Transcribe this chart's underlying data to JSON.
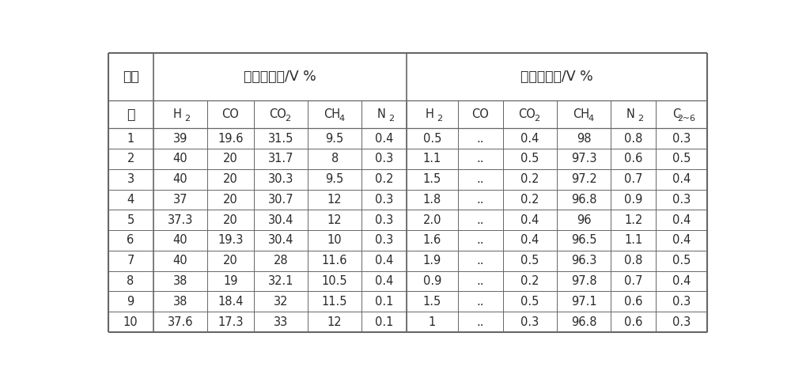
{
  "header1_text": "原料气组成/V %",
  "header2_text": "产品气组成/V %",
  "row_label_line1": "实施",
  "row_label_line2": "例",
  "col_headers": [
    "H 2",
    "C O",
    "C O 2",
    "C H 4",
    "N 2",
    "H 2",
    "C O",
    "C O 2",
    "C H 4",
    "N 2",
    "C 2~6"
  ],
  "col_headers_sub": [
    {
      "text": "H",
      "sub": "2"
    },
    {
      "text": "CO",
      "sub": ""
    },
    {
      "text": "CO",
      "sub": "2"
    },
    {
      "text": "CH",
      "sub": "4"
    },
    {
      "text": "N",
      "sub": "2"
    },
    {
      "text": "H",
      "sub": "2"
    },
    {
      "text": "CO",
      "sub": ""
    },
    {
      "text": "CO",
      "sub": "2"
    },
    {
      "text": "CH",
      "sub": "4"
    },
    {
      "text": "N",
      "sub": "2"
    },
    {
      "text": "C",
      "sub": "2~6"
    }
  ],
  "rows": [
    [
      "1",
      "39",
      "19.6",
      "31.5",
      "9.5",
      "0.4",
      "0.5",
      "..",
      "0.4",
      "98",
      "0.8",
      "0.3"
    ],
    [
      "2",
      "40",
      "20",
      "31.7",
      "8",
      "0.3",
      "1.1",
      "..",
      "0.5",
      "97.3",
      "0.6",
      "0.5"
    ],
    [
      "3",
      "40",
      "20",
      "30.3",
      "9.5",
      "0.2",
      "1.5",
      "..",
      "0.2",
      "97.2",
      "0.7",
      "0.4"
    ],
    [
      "4",
      "37",
      "20",
      "30.7",
      "12",
      "0.3",
      "1.8",
      "..",
      "0.2",
      "96.8",
      "0.9",
      "0.3"
    ],
    [
      "5",
      "37.3",
      "20",
      "30.4",
      "12",
      "0.3",
      "2.0",
      "..",
      "0.4",
      "96",
      "1.2",
      "0.4"
    ],
    [
      "6",
      "40",
      "19.3",
      "30.4",
      "10",
      "0.3",
      "1.6",
      "..",
      "0.4",
      "96.5",
      "1.1",
      "0.4"
    ],
    [
      "7",
      "40",
      "20",
      "28",
      "11.6",
      "0.4",
      "1.9",
      "..",
      "0.5",
      "96.3",
      "0.8",
      "0.5"
    ],
    [
      "8",
      "38",
      "19",
      "32.1",
      "10.5",
      "0.4",
      "0.9",
      "..",
      "0.2",
      "97.8",
      "0.7",
      "0.4"
    ],
    [
      "9",
      "38",
      "18.4",
      "32",
      "11.5",
      "0.1",
      "1.5",
      "..",
      "0.5",
      "97.1",
      "0.6",
      "0.3"
    ],
    [
      "10",
      "37.6",
      "17.3",
      "33",
      "12",
      "0.1",
      "1",
      "..",
      "0.3",
      "96.8",
      "0.6",
      "0.3"
    ]
  ],
  "bg_color": "#ffffff",
  "line_color": "#666666",
  "text_color": "#2a2a2a",
  "font_size": 10.5,
  "header_font_size": 12.5,
  "col_header_font_size": 10.5
}
